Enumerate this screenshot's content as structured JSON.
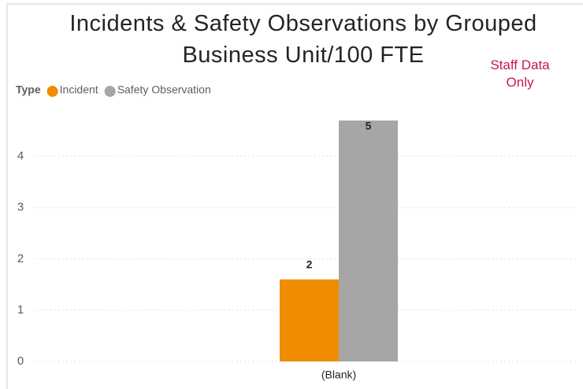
{
  "chart_data": {
    "type": "bar",
    "title": "Incidents & Safety Observations by Grouped Business Unit/100 FTE",
    "annotation": "Staff Data Only",
    "legend_title": "Type",
    "categories": [
      "(Blank)"
    ],
    "series": [
      {
        "name": "Incident",
        "color": "#f08c00",
        "values": [
          1.6
        ],
        "value_labels": [
          "2"
        ]
      },
      {
        "name": "Safety Observation",
        "color": "#a6a6a6",
        "values": [
          4.7
        ],
        "value_labels": [
          "5"
        ]
      }
    ],
    "ylim": [
      0,
      4.9
    ],
    "yticks": [
      0,
      1,
      2,
      3,
      4
    ],
    "grid": true
  }
}
